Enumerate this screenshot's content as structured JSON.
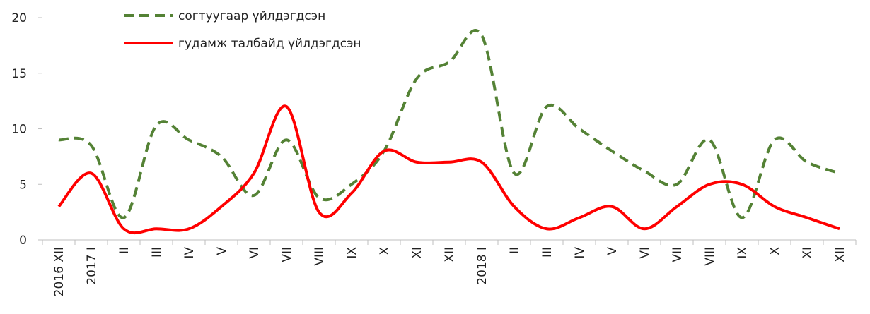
{
  "chart_data": {
    "type": "line",
    "categories": [
      "2016 XII",
      "2017 I",
      "II",
      "III",
      "IV",
      "V",
      "VI",
      "VII",
      "VIII",
      "IX",
      "X",
      "XI",
      "XII",
      "2018 I",
      "II",
      "III",
      "IV",
      "V",
      "VI",
      "VII",
      "VIII",
      "IX",
      "X",
      "XI",
      "XII"
    ],
    "series": [
      {
        "name": "согтуугаар үйлдэгдсэн",
        "color": "#548235",
        "dash": true,
        "values": [
          9,
          8.5,
          2,
          10.3,
          9,
          7.5,
          4,
          9,
          3.8,
          5,
          8,
          14.5,
          16,
          18.4,
          6,
          12,
          10,
          8,
          6.2,
          5,
          9,
          2,
          9,
          7,
          6
        ]
      },
      {
        "name": "гудамж талбайд үйлдэгдсэн",
        "color": "#ff0000",
        "dash": false,
        "values": [
          3,
          6,
          1,
          1,
          1,
          3,
          6,
          12,
          2.5,
          4.2,
          8,
          7,
          7,
          7,
          3,
          1,
          2,
          3,
          1,
          3,
          5,
          5,
          3,
          2,
          1
        ]
      }
    ],
    "ylim": [
      0,
      20
    ],
    "yticks": [
      0,
      5,
      10,
      15,
      20
    ],
    "grid": false
  }
}
